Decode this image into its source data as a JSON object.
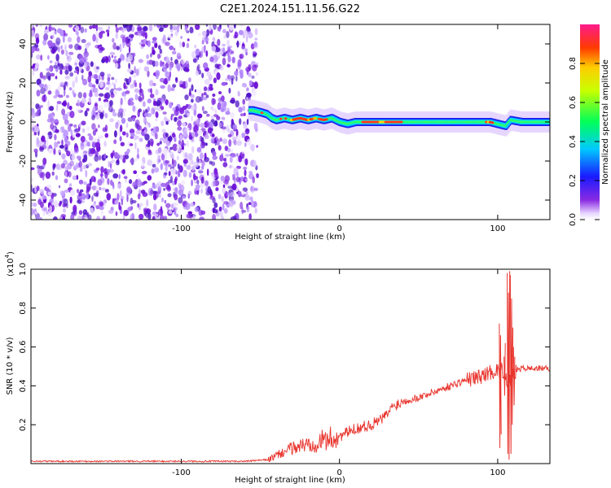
{
  "title": "C2E1.2024.151.11.56.G22",
  "chart_data": [
    {
      "type": "heatmap",
      "xlabel": "Height of straight line (km)",
      "ylabel": "Frequency (Hz)",
      "xlim": [
        -195,
        133
      ],
      "ylim": [
        -50,
        50
      ],
      "xticks": [
        -100,
        0,
        100
      ],
      "yticks": [
        -40,
        -20,
        0,
        20,
        40
      ],
      "noise_region_x": [
        -195,
        -57
      ],
      "ridge": {
        "x": [
          -57,
          -55,
          -50,
          -46,
          -43,
          -40,
          -35,
          -30,
          -25,
          -20,
          -15,
          -10,
          -5,
          0,
          5,
          10,
          20,
          40,
          60,
          80,
          90,
          95,
          100,
          105,
          108,
          115,
          133
        ],
        "y": [
          6,
          6,
          5,
          4,
          2,
          1,
          2,
          1,
          2,
          1,
          2,
          1,
          2,
          0,
          -1,
          0,
          0,
          0,
          0,
          0,
          0,
          0,
          -1,
          -2,
          1,
          0,
          0
        ]
      },
      "peak_segments": [
        [
          15,
          40
        ],
        [
          -30,
          -15
        ],
        [
          -12,
          -8
        ],
        [
          93,
          97
        ]
      ],
      "colorbar": {
        "label": "Normalized spectral amplitude",
        "ticks": [
          "0.0",
          "0.2",
          "0.4",
          "0.6",
          "0.8"
        ],
        "range": [
          0,
          1
        ]
      }
    },
    {
      "type": "line",
      "xlabel": "Height of straight line (km)",
      "ylabel": "SNR (10 * v/v)",
      "exponent_label": "(x10",
      "exponent_power": "4",
      "exponent_close": ")",
      "xlim": [
        -195,
        133
      ],
      "ylim": [
        0,
        1.0
      ],
      "xticks": [
        -100,
        0,
        100
      ],
      "yticks": [
        "0.2",
        "0.4",
        "0.6",
        "0.8",
        "1.0"
      ],
      "color": "#e8342d",
      "series": [
        {
          "x": [
            -195,
            -140,
            -60,
            -45,
            -40,
            -35,
            -30,
            -25,
            -20,
            -15,
            -10,
            -5,
            0,
            5,
            10,
            15,
            20,
            25,
            30,
            32,
            35,
            40,
            50,
            60,
            70,
            80,
            90,
            95,
            100,
            103,
            105,
            107,
            109,
            112,
            115,
            120,
            125,
            133
          ],
          "values": [
            0.012,
            0.012,
            0.012,
            0.02,
            0.04,
            0.06,
            0.08,
            0.09,
            0.1,
            0.11,
            0.12,
            0.13,
            0.14,
            0.16,
            0.18,
            0.19,
            0.2,
            0.22,
            0.25,
            0.28,
            0.3,
            0.32,
            0.34,
            0.37,
            0.4,
            0.43,
            0.45,
            0.47,
            0.48,
            0.48,
            0.46,
            0.4,
            0.45,
            0.48,
            0.49,
            0.49,
            0.49,
            0.49
          ]
        }
      ],
      "spikes": [
        {
          "x": 101,
          "values": [
            0.72,
            0.08,
            0.66,
            0.15
          ]
        },
        {
          "x": 104,
          "values": [
            0.55,
            0.35,
            0.62
          ]
        },
        {
          "x": 106,
          "values": [
            0.98,
            0.05,
            0.88,
            0.02,
            0.99
          ]
        },
        {
          "x": 108,
          "values": [
            0.97,
            0.05,
            0.85,
            0.2,
            0.7
          ]
        },
        {
          "x": 110,
          "values": [
            0.6,
            0.3,
            0.55
          ]
        }
      ]
    }
  ]
}
